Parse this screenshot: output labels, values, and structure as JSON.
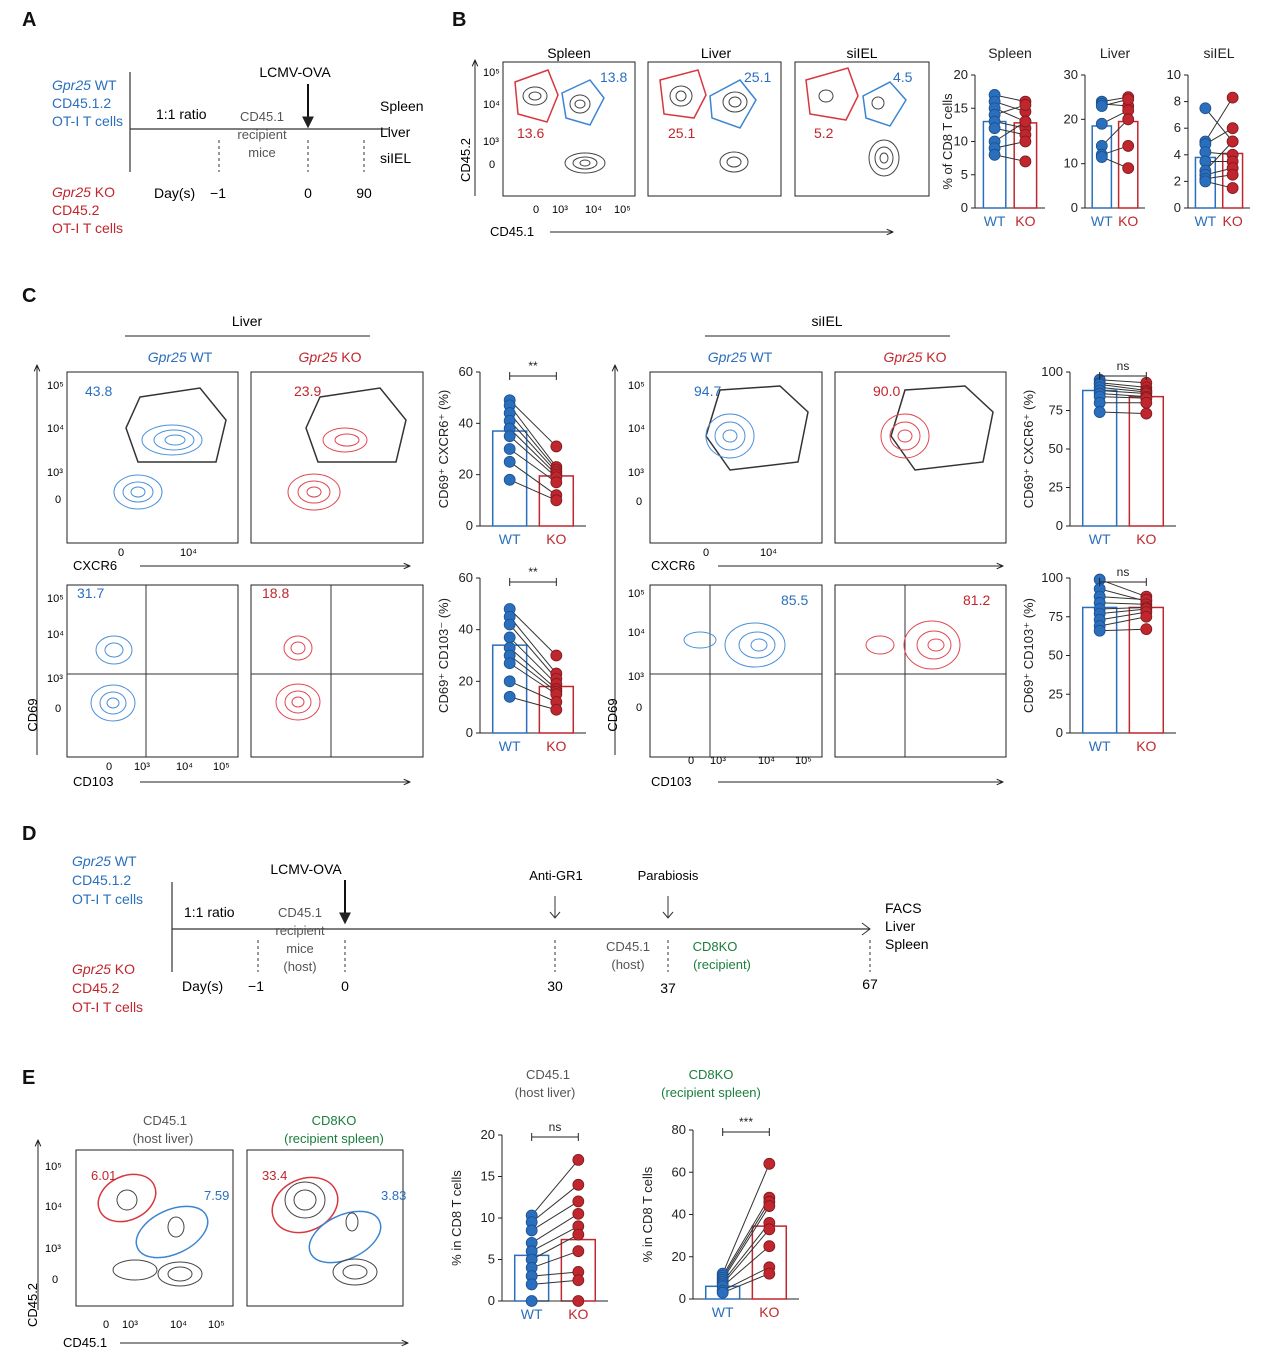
{
  "colors": {
    "wt": "#2a6fbd",
    "ko": "#c0262d",
    "green": "#1a7d3c",
    "contour": "#333333"
  },
  "panelA": {
    "letter": "A",
    "wt_gene": "Gpr25",
    "wt_label": " WT",
    "wt_line2": "CD45.1.2",
    "wt_line3": "OT-I T cells",
    "ko_gene": "Gpr25",
    "ko_label": " KO",
    "ko_line2": "CD45.2",
    "ko_line3": "OT-I T cells",
    "ratio": "1:1 ratio",
    "recipient": [
      "CD45.1",
      "recipient",
      "mice"
    ],
    "virus": "LCMV-OVA",
    "tissues": [
      "Spleen",
      "Liver",
      "siIEL"
    ],
    "days_label": "Day(s)",
    "days": [
      "−1",
      "0",
      "90"
    ]
  },
  "panelB": {
    "letter": "B",
    "facs": [
      {
        "title": "Spleen",
        "red_pct": "13.6",
        "blue_pct": "13.8"
      },
      {
        "title": "Liver",
        "red_pct": "25.1",
        "blue_pct": "25.1"
      },
      {
        "title": "siIEL",
        "red_pct": "5.2",
        "blue_pct": "4.5"
      }
    ],
    "y_axis": "CD45.2",
    "x_axis": "CD45.1",
    "y_ticks": [
      "10⁵",
      "10⁴",
      "10³",
      "0"
    ],
    "x_ticks": [
      "0",
      "10³",
      "10⁴",
      "10⁵"
    ]
  },
  "panelC": {
    "letter": "C",
    "groups": [
      {
        "title": "Liver",
        "wt_pct_top": "43.8",
        "ko_pct_top": "23.9",
        "wt_pct_bot": "31.7",
        "ko_pct_bot": "18.8"
      },
      {
        "title": "siIEL",
        "wt_pct_top": "94.7",
        "ko_pct_top": "90.0",
        "wt_pct_bot": "85.5",
        "ko_pct_bot": "81.2"
      }
    ],
    "wt_gene": "Gpr25",
    "wt_suffix": " WT",
    "ko_gene": "Gpr25",
    "ko_suffix": " KO",
    "x_top": "CXCR6",
    "x_bot": "CD103",
    "y_axis": "CD69",
    "sig": [
      "**",
      "**",
      "ns",
      "ns"
    ]
  },
  "panelD": {
    "letter": "D",
    "ratio": "1:1 ratio",
    "host": [
      "CD45.1",
      "recipient",
      "mice",
      "(host)"
    ],
    "virus": "LCMV-OVA",
    "anti_gr1": "Anti-GR1",
    "parabiosis": "Parabiosis",
    "cd45_host": [
      "CD45.1",
      "(host)"
    ],
    "cd8ko": [
      "CD8KO",
      "(recipient)"
    ],
    "readout": [
      "FACS",
      "Liver",
      "Spleen"
    ],
    "days_label": "Day(s)",
    "days": [
      "−1",
      "0",
      "30",
      "37",
      "67"
    ]
  },
  "panelE": {
    "letter": "E",
    "facs": [
      {
        "title": [
          "CD45.1",
          "(host liver)"
        ],
        "red_pct": "6.01",
        "blue_pct": "7.59"
      },
      {
        "title": [
          "CD8KO",
          "(recipient spleen)"
        ],
        "red_pct": "33.4",
        "blue_pct": "3.83"
      }
    ],
    "sig": [
      "ns",
      "***"
    ],
    "y_axis": "CD45.2",
    "x_axis": "CD45.1"
  },
  "chart_data": [
    {
      "type": "bar",
      "id": "B-spleen",
      "title": "Spleen",
      "ylabel": "% of CD8 T cells",
      "ylim": [
        0,
        20
      ],
      "yticks": [
        0,
        5,
        10,
        15,
        20
      ],
      "categories": [
        "WT",
        "KO"
      ],
      "bar_values": [
        13,
        12.8
      ],
      "pairs": [
        [
          17,
          16
        ],
        [
          16,
          14.5
        ],
        [
          15,
          13
        ],
        [
          14,
          15.5
        ],
        [
          13,
          12
        ],
        [
          12,
          11
        ],
        [
          10,
          13
        ],
        [
          9,
          10
        ],
        [
          8,
          7
        ]
      ]
    },
    {
      "type": "bar",
      "id": "B-liver",
      "title": "Liver",
      "ylim": [
        0,
        30
      ],
      "yticks": [
        0,
        10,
        20,
        30
      ],
      "categories": [
        "WT",
        "KO"
      ],
      "bar_values": [
        18.5,
        19.5
      ],
      "pairs": [
        [
          24,
          25
        ],
        [
          23.5,
          23
        ],
        [
          23,
          24.5
        ],
        [
          19,
          22
        ],
        [
          14,
          20
        ],
        [
          12,
          14
        ],
        [
          11.5,
          9
        ]
      ]
    },
    {
      "type": "bar",
      "id": "B-siiel",
      "title": "siIEL",
      "ylim": [
        0,
        10
      ],
      "yticks": [
        0,
        2,
        4,
        6,
        8,
        10
      ],
      "categories": [
        "WT",
        "KO"
      ],
      "bar_values": [
        3.8,
        4.1
      ],
      "pairs": [
        [
          7.5,
          5
        ],
        [
          5,
          8.3
        ],
        [
          4.8,
          6
        ],
        [
          4.2,
          4
        ],
        [
          3.5,
          3.5
        ],
        [
          2.8,
          5
        ],
        [
          2.5,
          3
        ],
        [
          2.2,
          2.5
        ],
        [
          2,
          1.5
        ]
      ]
    },
    {
      "type": "bar",
      "id": "C-liver-cxcr6",
      "ylabel": "CD69⁺ CXCR6⁺ (%)",
      "ylim": [
        0,
        60
      ],
      "yticks": [
        0,
        20,
        40,
        60
      ],
      "categories": [
        "WT",
        "KO"
      ],
      "bar_values": [
        37,
        19.5
      ],
      "pairs": [
        [
          49,
          31
        ],
        [
          47,
          23
        ],
        [
          44,
          22
        ],
        [
          41,
          21
        ],
        [
          38,
          20
        ],
        [
          35,
          19
        ],
        [
          30,
          17
        ],
        [
          25,
          12
        ],
        [
          18,
          10
        ]
      ]
    },
    {
      "type": "bar",
      "id": "C-liver-cd103",
      "ylabel": "CD69⁺ CD103⁻ (%)",
      "ylim": [
        0,
        60
      ],
      "yticks": [
        0,
        20,
        40,
        60
      ],
      "categories": [
        "WT",
        "KO"
      ],
      "bar_values": [
        34,
        18
      ],
      "pairs": [
        [
          48,
          30
        ],
        [
          45,
          23
        ],
        [
          42,
          21
        ],
        [
          37,
          19
        ],
        [
          33,
          17
        ],
        [
          30,
          16
        ],
        [
          27,
          15
        ],
        [
          20,
          12
        ],
        [
          14,
          9
        ]
      ]
    },
    {
      "type": "bar",
      "id": "C-siiel-cxcr6",
      "ylabel": "CD69⁺ CXCR6⁺ (%)",
      "ylim": [
        0,
        100
      ],
      "yticks": [
        0,
        25,
        50,
        75,
        100
      ],
      "categories": [
        "WT",
        "KO"
      ],
      "bar_values": [
        88,
        84
      ],
      "pairs": [
        [
          95,
          93
        ],
        [
          93,
          90
        ],
        [
          92,
          88
        ],
        [
          90,
          87
        ],
        [
          88,
          86
        ],
        [
          86,
          84
        ],
        [
          84,
          83
        ],
        [
          80,
          80
        ],
        [
          74,
          73
        ]
      ]
    },
    {
      "type": "bar",
      "id": "C-siiel-cd103",
      "ylabel": "CD69⁺ CD103⁺ (%)",
      "ylim": [
        0,
        100
      ],
      "yticks": [
        0,
        25,
        50,
        75,
        100
      ],
      "categories": [
        "WT",
        "KO"
      ],
      "bar_values": [
        81,
        81
      ],
      "pairs": [
        [
          99,
          88
        ],
        [
          93,
          85
        ],
        [
          88,
          86
        ],
        [
          84,
          83
        ],
        [
          80,
          81
        ],
        [
          77,
          80
        ],
        [
          73,
          78
        ],
        [
          69,
          75
        ],
        [
          66,
          67
        ]
      ]
    },
    {
      "type": "bar",
      "id": "E-host",
      "title": "CD45.1 (host liver)",
      "ylabel": "% in CD8  T cells",
      "ylim": [
        0,
        20
      ],
      "yticks": [
        0,
        5,
        10,
        15,
        20
      ],
      "categories": [
        "WT",
        "KO"
      ],
      "bar_values": [
        5.5,
        7.4
      ],
      "pairs": [
        [
          10.3,
          17
        ],
        [
          9.5,
          14
        ],
        [
          8.5,
          12
        ],
        [
          7,
          10.5
        ],
        [
          6,
          9
        ],
        [
          5,
          8
        ],
        [
          4,
          6
        ],
        [
          3,
          3.5
        ],
        [
          2,
          2.5
        ],
        [
          0,
          0
        ]
      ]
    },
    {
      "type": "bar",
      "id": "E-recipient",
      "title": "CD8KO (recipient spleen)",
      "ylabel": "% in CD8  T cells",
      "ylim": [
        0,
        80
      ],
      "yticks": [
        0,
        20,
        40,
        60,
        80
      ],
      "categories": [
        "WT",
        "KO"
      ],
      "bar_values": [
        6,
        34.5
      ],
      "pairs": [
        [
          12,
          64
        ],
        [
          11,
          48
        ],
        [
          10,
          46
        ],
        [
          9,
          44
        ],
        [
          8,
          36
        ],
        [
          7,
          33
        ],
        [
          6,
          25
        ],
        [
          4,
          15
        ],
        [
          3,
          12
        ]
      ]
    }
  ]
}
